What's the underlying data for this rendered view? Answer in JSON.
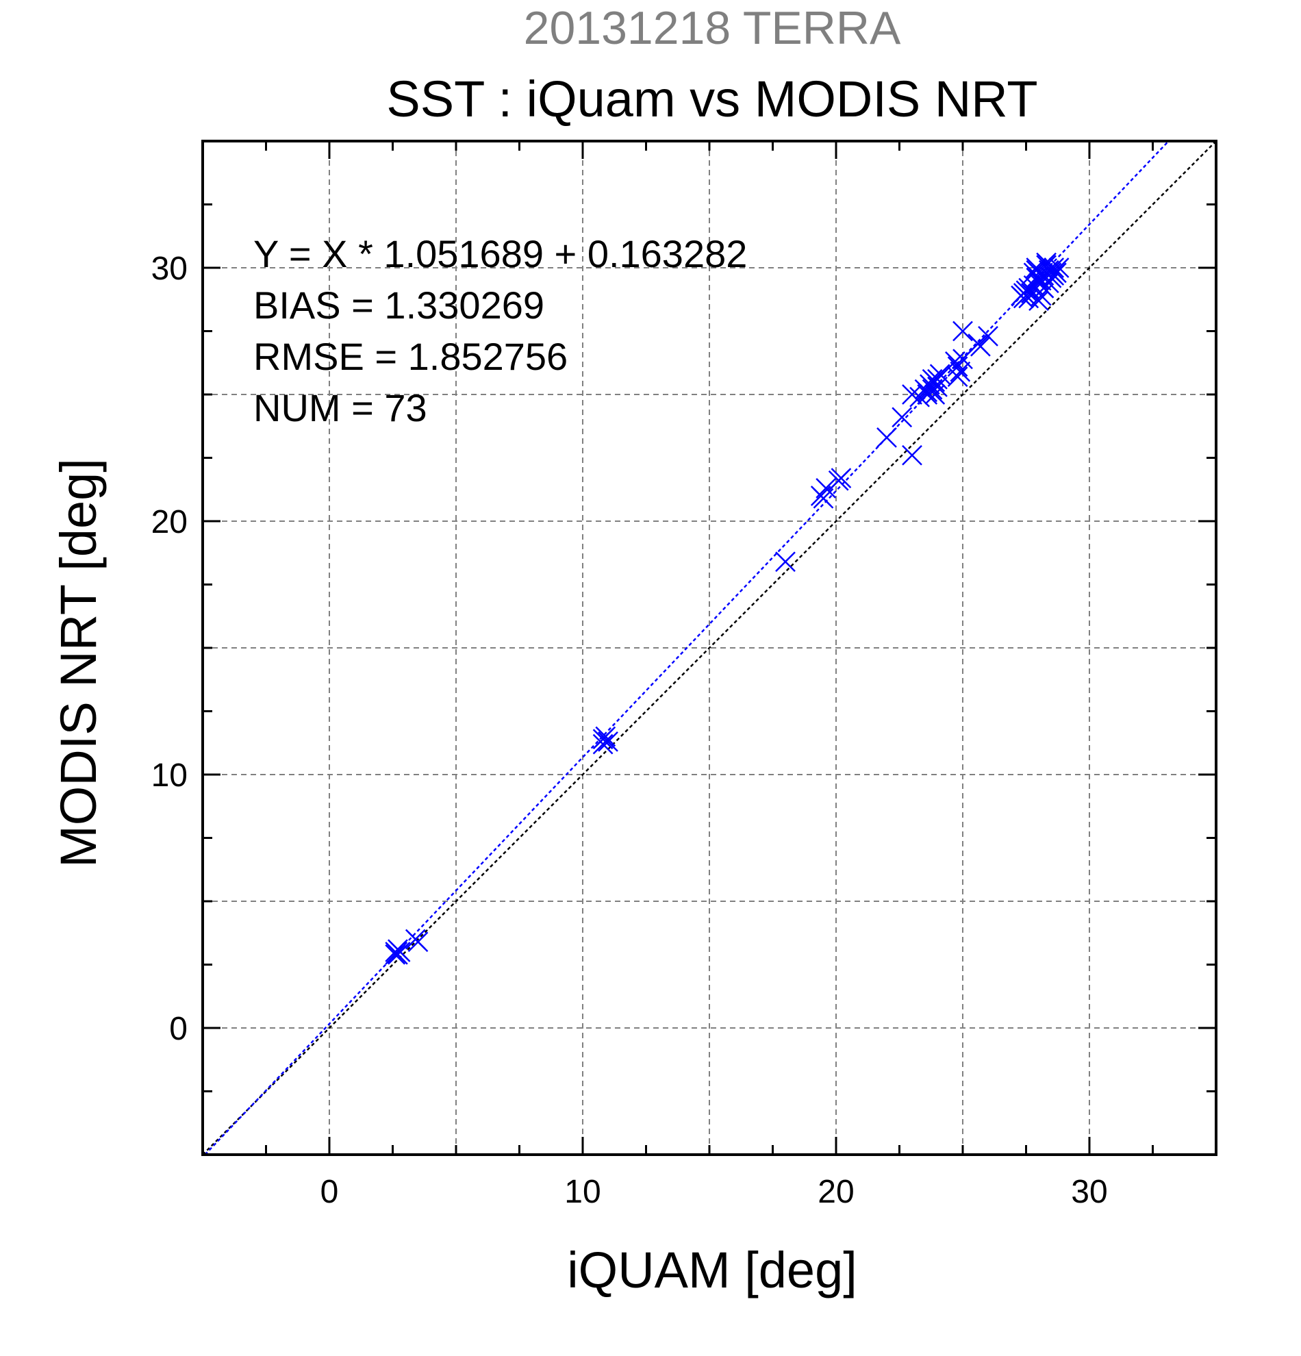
{
  "chart_data": {
    "type": "scatter",
    "supertitle": "20131218 TERRA",
    "title": "SST : iQuam vs MODIS NRT",
    "xlabel": "iQUAM [deg]",
    "ylabel": "MODIS NRT [deg]",
    "xlim": [
      -5,
      35
    ],
    "ylim": [
      -5,
      35
    ],
    "x_ticks": [
      0,
      10,
      20,
      30
    ],
    "y_ticks": [
      0,
      10,
      20,
      30
    ],
    "grid": true,
    "stats": [
      "Y = X * 1.051689 + 0.163282",
      "BIAS = 1.330269",
      "RMSE = 1.852756",
      "NUM = 73"
    ],
    "fit": {
      "slope": 1.051689,
      "intercept": 0.163282
    },
    "colors": {
      "points": "#0000ff",
      "fit_line": "#0000ff",
      "identity_line": "#000000",
      "supertitle": "#808080",
      "grid": "#808080"
    },
    "x": [
      2.6,
      2.7,
      2.8,
      2.6,
      3.4,
      3.5,
      10.8,
      10.9,
      11.0,
      10.8,
      18.0,
      19.5,
      19.6,
      19.4,
      20.1,
      20.2,
      22.0,
      22.6,
      23.0,
      23.0,
      23.3,
      23.5,
      23.6,
      23.7,
      23.8,
      23.9,
      24.0,
      24.1,
      23.6,
      23.8,
      24.7,
      24.8,
      24.9,
      25.0,
      24.8,
      25.6,
      25.7,
      26.0,
      27.3,
      27.4,
      27.5,
      27.6,
      27.8,
      27.9,
      27.9,
      28.0,
      28.1,
      28.2,
      28.3,
      28.4,
      28.5,
      28.6,
      28.7,
      28.0,
      28.2,
      28.1,
      28.4,
      27.8,
      27.7,
      28.5,
      28.6,
      28.3,
      28.0,
      27.9,
      28.2,
      24.0,
      25.0,
      23.9,
      27.4,
      28.8,
      27.6,
      28.0,
      2.7
    ],
    "y": [
      3.0,
      3.1,
      3.0,
      2.9,
      3.5,
      3.4,
      11.4,
      11.5,
      11.3,
      11.2,
      18.4,
      20.9,
      21.3,
      21.0,
      21.6,
      21.7,
      23.3,
      24.1,
      22.6,
      25.0,
      24.9,
      25.2,
      25.0,
      25.4,
      25.6,
      25.5,
      25.3,
      25.8,
      25.1,
      25.2,
      26.3,
      26.1,
      25.9,
      27.5,
      25.7,
      27.0,
      26.9,
      27.3,
      28.9,
      29.0,
      29.1,
      28.8,
      29.8,
      29.6,
      30.0,
      29.4,
      28.9,
      29.7,
      30.2,
      29.9,
      29.6,
      30.0,
      29.8,
      28.7,
      29.2,
      29.5,
      29.4,
      29.3,
      29.0,
      29.8,
      29.7,
      30.1,
      29.5,
      29.9,
      29.2,
      25.6,
      26.4,
      25.0,
      28.8,
      30.0,
      29.2,
      29.6,
      2.9
    ]
  }
}
